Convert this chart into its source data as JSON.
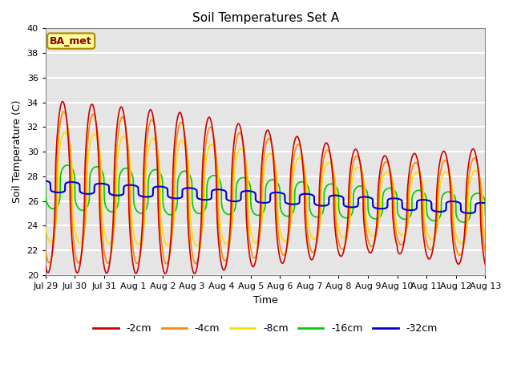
{
  "title": "Soil Temperatures Set A",
  "xlabel": "Time",
  "ylabel": "Soil Temperature (C)",
  "annotation": "BA_met",
  "ylim": [
    20,
    40
  ],
  "xlim": [
    0,
    360
  ],
  "background_color": "#e5e5e5",
  "grid_color": "white",
  "series": {
    "-2cm": {
      "color": "#cc0000",
      "lw": 1.2
    },
    "-4cm": {
      "color": "#ff8800",
      "lw": 1.2
    },
    "-8cm": {
      "color": "#ffdd00",
      "lw": 1.2
    },
    "-16cm": {
      "color": "#00cc00",
      "lw": 1.2
    },
    "-32cm": {
      "color": "#0000cc",
      "lw": 1.5
    }
  },
  "xtick_labels": [
    "Jul 29",
    "Jul 30",
    "Jul 31",
    "Aug 1",
    "Aug 2",
    "Aug 3",
    "Aug 4",
    "Aug 5",
    "Aug 6",
    "Aug 7",
    "Aug 8",
    "Aug 9",
    "Aug 10",
    "Aug 11",
    "Aug 12",
    "Aug 13"
  ],
  "xtick_positions": [
    0,
    24,
    48,
    72,
    96,
    120,
    144,
    168,
    192,
    216,
    240,
    264,
    288,
    312,
    336,
    360
  ]
}
